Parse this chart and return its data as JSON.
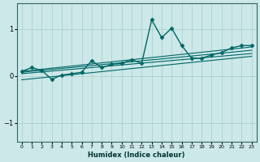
{
  "xlabel": "Humidex (Indice chaleur)",
  "ylabel": "",
  "background_color": "#cce8e8",
  "grid_color": "#aacccc",
  "line_color": "#006666",
  "xlim": [
    -0.5,
    23.5
  ],
  "ylim": [
    -1.4,
    1.55
  ],
  "yticks": [
    -1,
    0,
    1
  ],
  "xticks": [
    0,
    1,
    2,
    3,
    4,
    5,
    6,
    7,
    8,
    9,
    10,
    11,
    12,
    13,
    14,
    15,
    16,
    17,
    18,
    19,
    20,
    21,
    22,
    23
  ],
  "series": [
    {
      "x": [
        0,
        1,
        2,
        3,
        4,
        5,
        6,
        7,
        8,
        9,
        10,
        11,
        12,
        13,
        14,
        15,
        16,
        17,
        18,
        19,
        20,
        21,
        22,
        23
      ],
      "y": [
        0.1,
        0.18,
        0.12,
        -0.07,
        0.02,
        0.05,
        0.08,
        0.33,
        0.18,
        0.25,
        0.27,
        0.35,
        0.27,
        1.2,
        0.82,
        1.02,
        0.65,
        0.38,
        0.38,
        0.45,
        0.5,
        0.6,
        0.65,
        0.65
      ],
      "marker": "D",
      "markersize": 2.5,
      "linewidth": 1.0
    },
    {
      "x": [
        0,
        23
      ],
      "y": [
        0.1,
        0.62
      ],
      "marker": null,
      "markersize": 0,
      "linewidth": 0.8
    },
    {
      "x": [
        0,
        23
      ],
      "y": [
        0.08,
        0.55
      ],
      "marker": null,
      "markersize": 0,
      "linewidth": 0.8
    },
    {
      "x": [
        0,
        23
      ],
      "y": [
        0.05,
        0.48
      ],
      "marker": null,
      "markersize": 0,
      "linewidth": 0.8
    },
    {
      "x": [
        0,
        23
      ],
      "y": [
        -0.08,
        0.42
      ],
      "marker": null,
      "markersize": 0,
      "linewidth": 0.8
    }
  ]
}
